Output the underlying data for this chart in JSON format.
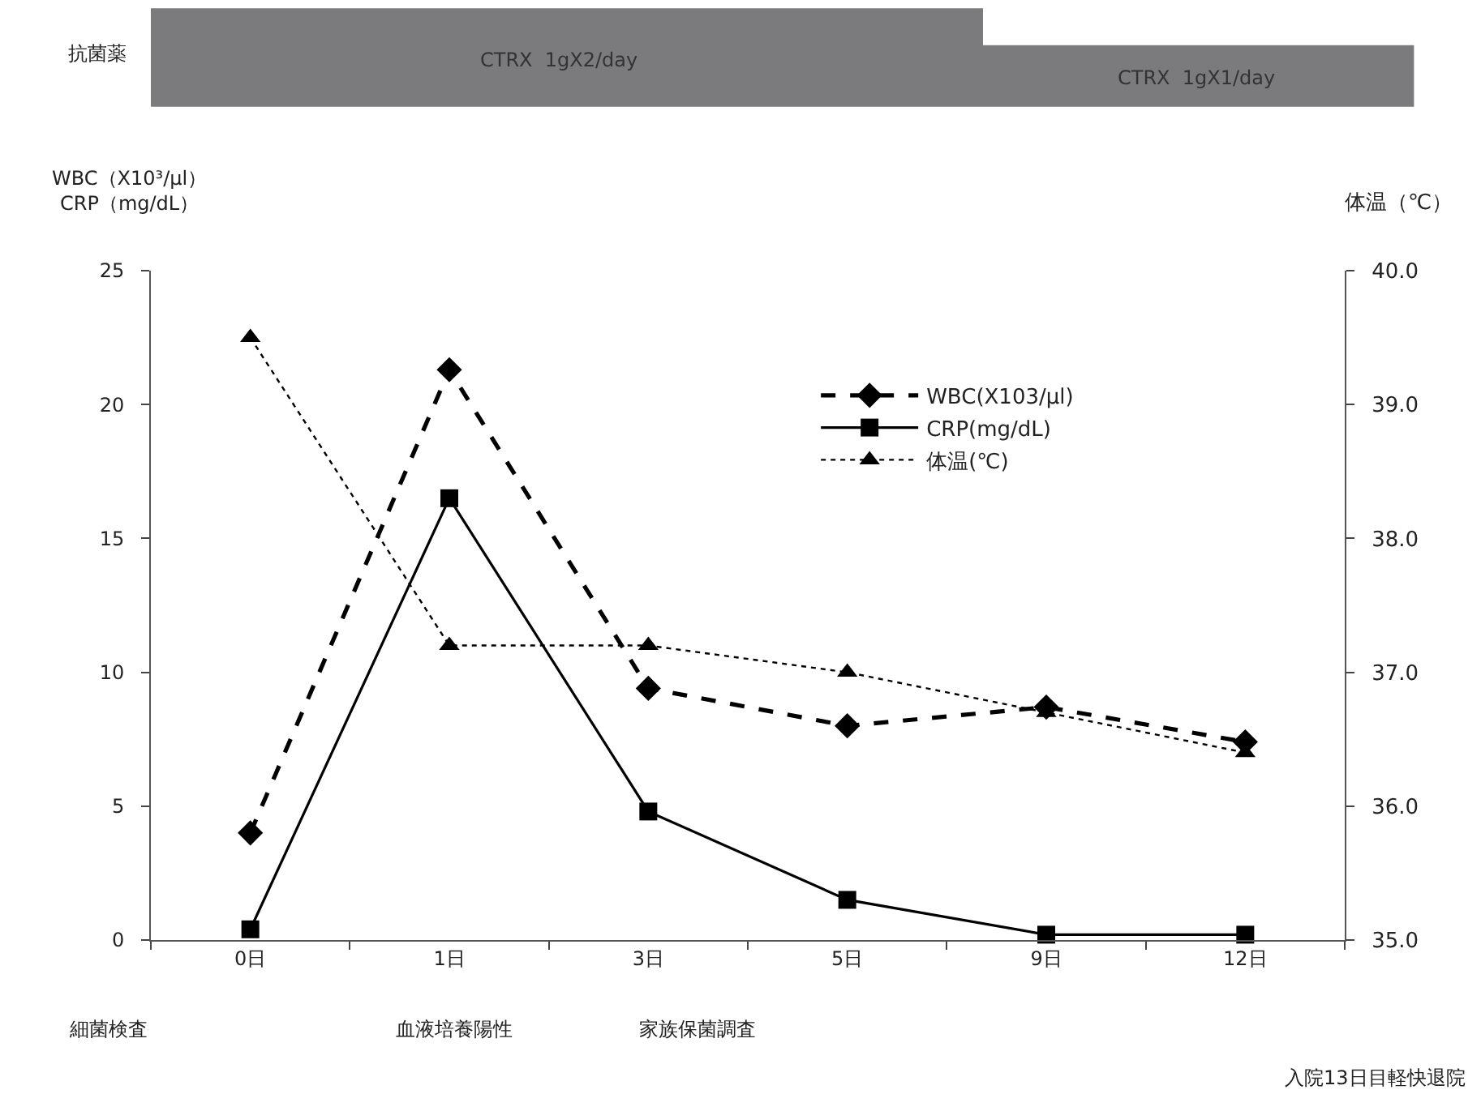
{
  "chart_data": {
    "type": "line",
    "categories": [
      "0日",
      "1日",
      "3日",
      "5日",
      "9日",
      "12日"
    ],
    "ylabel": "WBC（X10³/μl）\nCRP（mg/dL）",
    "y2label": "体温（℃）",
    "ylim": [
      0,
      25
    ],
    "yticks": [
      0,
      5,
      10,
      15,
      20,
      25
    ],
    "y2lim": [
      35.0,
      40.0
    ],
    "y2ticks": [
      {
        "value": 35,
        "label": "35.0"
      },
      {
        "value": 36,
        "label": "36.0"
      },
      {
        "value": 37,
        "label": "37.0"
      },
      {
        "value": 38,
        "label": "38.0"
      },
      {
        "value": 39,
        "label": "39.0"
      },
      {
        "value": 40,
        "label": "40.0"
      }
    ],
    "series": [
      {
        "name": "WBC(X103/μl)",
        "color": "#000000",
        "values": [
          4.0,
          21.3,
          9.4,
          8.0,
          8.7,
          7.4
        ],
        "marker": "diamond",
        "line_style": "dashed"
      },
      {
        "name": "CRP(mg/dL)",
        "color": "#000000",
        "values": [
          0.4,
          16.5,
          4.8,
          1.5,
          0.2,
          0.2
        ],
        "marker": "square",
        "line_style": "solid"
      },
      {
        "name": "体温(℃)",
        "color": "#000000",
        "values": [
          39.5,
          37.2,
          37.2,
          37.0,
          36.7,
          36.4
        ],
        "marker": "triangle",
        "line_style": "dotted",
        "axis": "y2"
      }
    ],
    "annotations": [
      "抗菌薬",
      "CTRX  1gX2/day",
      "CTRX  1gX1/day",
      "細菌検査",
      "血液培養陽性",
      "家族保菌調査",
      "入院13日目軽快退院"
    ],
    "legend": "top right"
  }
}
